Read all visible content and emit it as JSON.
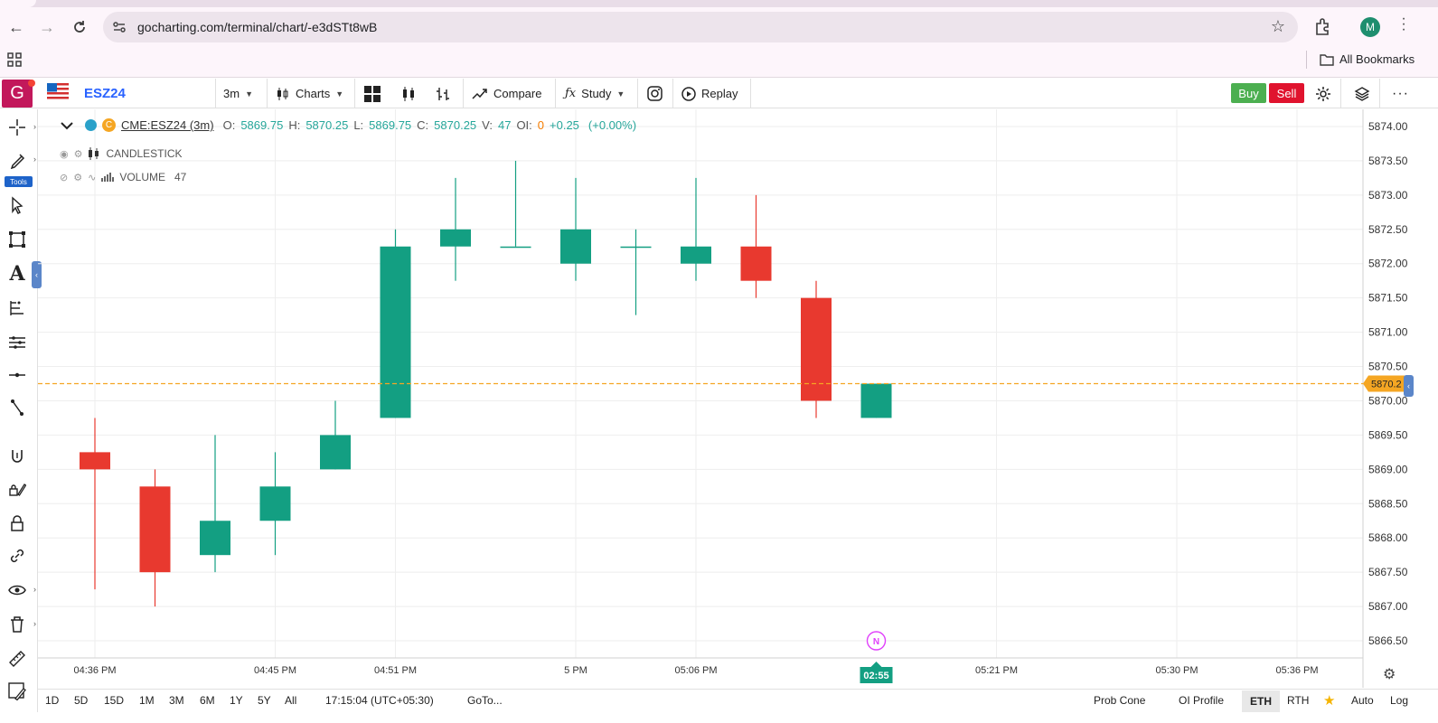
{
  "browser": {
    "url": "gocharting.com/terminal/chart/-e3dSTt8wB",
    "profile_initial": "M",
    "bookmarks_label": "All Bookmarks"
  },
  "toolbar": {
    "logo_letter": "G",
    "symbol": "ESZ24",
    "interval": "3m",
    "charts_label": "Charts",
    "compare_label": "Compare",
    "study_label": "Study",
    "replay_label": "Replay",
    "buy_label": "Buy",
    "sell_label": "Sell"
  },
  "left_tools": {
    "badge": "Tools"
  },
  "legend": {
    "symbol_label": "CME:ESZ24 (3m)",
    "o_label": "O:",
    "o_value": "5869.75",
    "h_label": "H:",
    "h_value": "5870.25",
    "l_label": "L:",
    "l_value": "5869.75",
    "c_label": "C:",
    "c_value": "5870.25",
    "v_label": "V:",
    "v_value": "47",
    "oi_label": "OI:",
    "oi_value": "0",
    "change": "+0.25",
    "change_pct": "(+0.00%)",
    "study1": "CANDLESTICK",
    "study2": "VOLUME",
    "study2_value": "47"
  },
  "chart_data": {
    "type": "candlestick",
    "y_ticks": [
      "5874.00",
      "5873.50",
      "5873.00",
      "5872.50",
      "5872.00",
      "5871.50",
      "5871.00",
      "5870.50",
      "5870.00",
      "5869.50",
      "5869.00",
      "5868.50",
      "5868.00",
      "5867.50",
      "5867.00",
      "5866.50"
    ],
    "ylim": [
      5866.25,
      5874.25
    ],
    "x_ticks": [
      {
        "label": "04:36 PM",
        "index": 0
      },
      {
        "label": "04:45 PM",
        "index": 3
      },
      {
        "label": "04:51 PM",
        "index": 5
      },
      {
        "label": "5 PM",
        "index": 8
      },
      {
        "label": "05:06 PM",
        "index": 10
      },
      {
        "label": "05:21 PM",
        "index": 15
      },
      {
        "label": "05:30 PM",
        "index": 18
      },
      {
        "label": "05:36 PM",
        "index": 20
      }
    ],
    "candles": [
      {
        "o": 5869.25,
        "h": 5869.75,
        "l": 5867.25,
        "c": 5869.0
      },
      {
        "o": 5868.75,
        "h": 5869.0,
        "l": 5867.0,
        "c": 5867.5
      },
      {
        "o": 5867.75,
        "h": 5869.5,
        "l": 5867.5,
        "c": 5868.25
      },
      {
        "o": 5868.25,
        "h": 5869.25,
        "l": 5867.75,
        "c": 5868.75
      },
      {
        "o": 5869.0,
        "h": 5870.0,
        "l": 5869.0,
        "c": 5869.5
      },
      {
        "o": 5869.75,
        "h": 5872.5,
        "l": 5869.75,
        "c": 5872.25
      },
      {
        "o": 5872.25,
        "h": 5873.25,
        "l": 5871.75,
        "c": 5872.5
      },
      {
        "o": 5872.25,
        "h": 5873.5,
        "l": 5872.25,
        "c": 5872.25
      },
      {
        "o": 5872.0,
        "h": 5873.25,
        "l": 5871.75,
        "c": 5872.5
      },
      {
        "o": 5872.25,
        "h": 5872.5,
        "l": 5871.25,
        "c": 5872.25
      },
      {
        "o": 5872.0,
        "h": 5873.25,
        "l": 5871.75,
        "c": 5872.25
      },
      {
        "o": 5872.25,
        "h": 5873.0,
        "l": 5871.5,
        "c": 5871.75
      },
      {
        "o": 5871.5,
        "h": 5871.75,
        "l": 5869.75,
        "c": 5870.0
      },
      {
        "o": 5869.75,
        "h": 5870.25,
        "l": 5869.75,
        "c": 5870.25
      }
    ],
    "last_price": 5870.25,
    "last_price_label": "5870.2",
    "countdown_label": "02:55",
    "news_marker": "N",
    "news_index": 13,
    "colors": {
      "up": "#139f82",
      "down": "#e8392f",
      "price_line": "#f5a623",
      "grid": "#eeeeee"
    }
  },
  "bottom_bar": {
    "ranges": [
      "1D",
      "5D",
      "15D",
      "1M",
      "3M",
      "6M",
      "1Y",
      "5Y",
      "All"
    ],
    "time": "17:15:04 (UTC+05:30)",
    "goto": "GoTo...",
    "prob_cone": "Prob Cone",
    "oi_profile": "OI Profile",
    "eth": "ETH",
    "rth": "RTH",
    "auto": "Auto",
    "log": "Log"
  }
}
